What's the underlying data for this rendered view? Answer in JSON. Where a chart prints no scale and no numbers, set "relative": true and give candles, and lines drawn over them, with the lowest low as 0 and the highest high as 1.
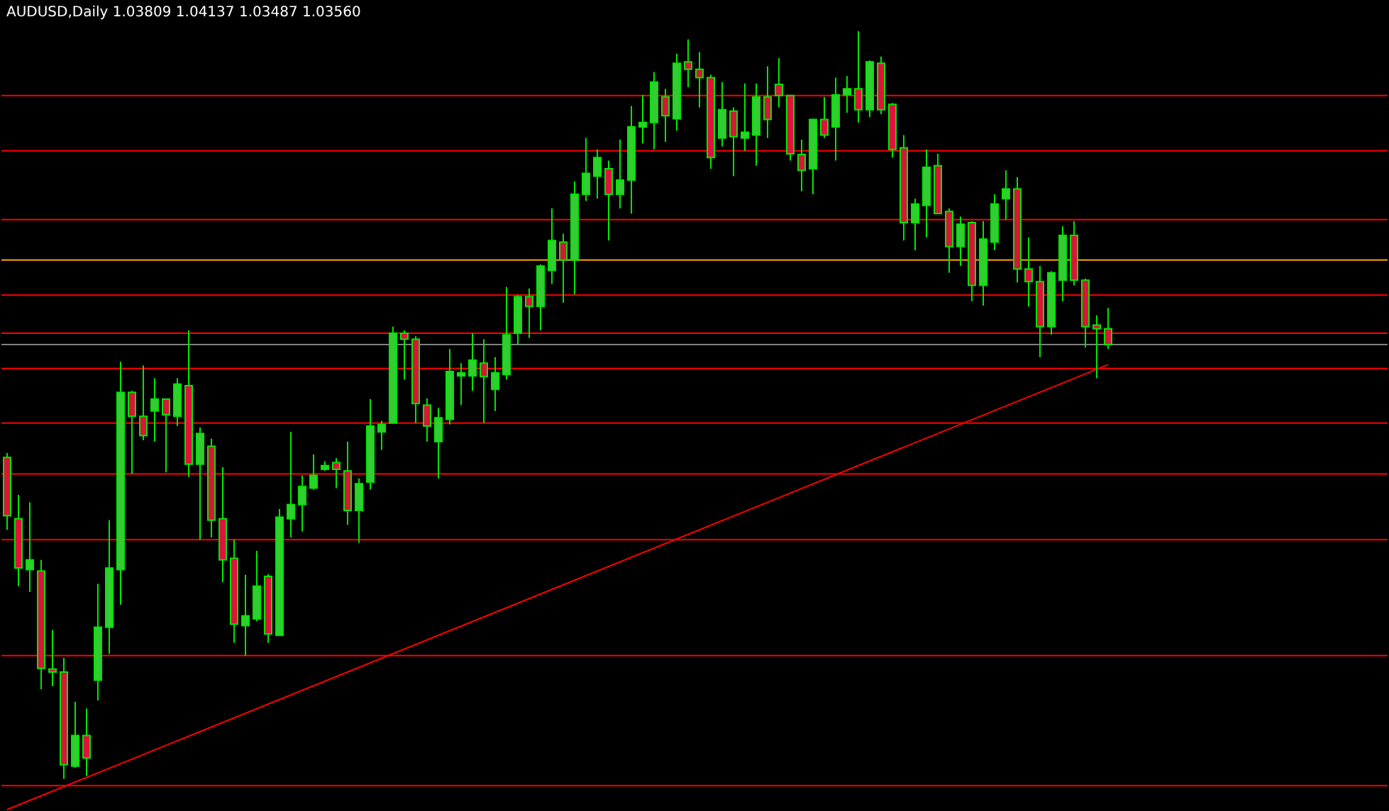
{
  "chart_data": {
    "type": "candlestick",
    "title": "AUDUSD,Daily  1.03809 1.04137 1.03487 1.03560",
    "relative": true,
    "categories": [
      null,
      null,
      null,
      null,
      null,
      null,
      null,
      null,
      null,
      null,
      null,
      null,
      null,
      null,
      null,
      null,
      null,
      null,
      null,
      null,
      null,
      null,
      null,
      null,
      null,
      null,
      null,
      null,
      null,
      null,
      null,
      null,
      null,
      null,
      null,
      null,
      null,
      null,
      null,
      null,
      null,
      null,
      null,
      null,
      null,
      null,
      null,
      null,
      null,
      null,
      null,
      null,
      null,
      null,
      null,
      null,
      null,
      null,
      null,
      null,
      null,
      null,
      null,
      null,
      null,
      null,
      null,
      null,
      null,
      null,
      null,
      null,
      null,
      null,
      null,
      null,
      null,
      null,
      null,
      null,
      null,
      null,
      null,
      null,
      null,
      null,
      null,
      null,
      null,
      null,
      null,
      null,
      null,
      null,
      null,
      null,
      null,
      null
    ],
    "series": [
      {
        "type": "candlestick",
        "color": "#00e600",
        "colors": [
          "#dc143c",
          "#dc143c",
          "#32cd32",
          "#dc143c",
          "#dc143c",
          "#dc143c",
          "#32cd32",
          "#dc143c",
          "#32cd32",
          "#32cd32",
          "#32cd32",
          "#dc143c",
          "#dc143c",
          "#32cd32",
          "#dc143c",
          "#32cd32",
          "#dc143c",
          "#32cd32",
          "#dc143c",
          "#dc143c",
          "#dc143c",
          "#32cd32",
          "#32cd32",
          "#dc143c",
          "#32cd32",
          "#32cd32",
          "#32cd32",
          "#32cd32",
          "#32cd32",
          "#dc143c",
          "#dc143c",
          "#32cd32",
          "#32cd32",
          "#32cd32",
          "#32cd32",
          "#dc143c",
          "#dc143c",
          "#dc143c",
          "#32cd32",
          "#32cd32",
          "#32cd32",
          "#32cd32",
          "#dc143c",
          "#32cd32",
          "#32cd32",
          "#32cd32",
          "#dc143c",
          "#32cd32",
          "#32cd32",
          "#dc143c",
          "#32cd32",
          "#32cd32",
          "#32cd32",
          "#dc143c",
          "#32cd32",
          "#32cd32",
          "#32cd32",
          "#32cd32",
          "#dc143c",
          "#32cd32",
          "#dc143c",
          "#dc143c",
          "#dc143c",
          "#32cd32",
          "#dc143c",
          "#32cd32",
          "#32cd32",
          "#dc143c",
          "#dc143c",
          "#dc143c",
          "#dc143c",
          "#32cd32",
          "#dc143c",
          "#32cd32",
          "#32cd32",
          "#dc143c",
          "#32cd32",
          "#dc143c",
          "#dc143c",
          "#dc143c",
          "#32cd32",
          "#32cd32",
          "#dc143c",
          "#dc143c",
          "#32cd32",
          "#dc143c",
          "#32cd32",
          "#32cd32",
          "#32cd32",
          "#dc143c",
          "#dc143c",
          "#dc143c",
          "#32cd32",
          "#32cd32",
          "#dc143c",
          "#dc143c",
          "#dc143c",
          "#dc143c"
        ],
        "ohlc": [
          [
            0.43,
            0.436,
            0.333,
            0.352
          ],
          [
            0.348,
            0.38,
            0.258,
            0.282
          ],
          [
            0.28,
            0.37,
            0.25,
            0.293
          ],
          [
            0.278,
            0.293,
            0.12,
            0.148
          ],
          [
            0.147,
            0.199,
            0.124,
            0.143
          ],
          [
            0.143,
            0.162,
            0,
            0.019
          ],
          [
            0.017,
            0.103,
            0.015,
            0.058
          ],
          [
            0.058,
            0.094,
            0.004,
            0.028
          ],
          [
            0.132,
            0.261,
            0.105,
            0.203
          ],
          [
            0.203,
            0.346,
            0.167,
            0.282
          ],
          [
            0.28,
            0.558,
            0.233,
            0.517
          ],
          [
            0.517,
            0.519,
            0.408,
            0.485
          ],
          [
            0.485,
            0.553,
            0.453,
            0.459
          ],
          [
            0.492,
            0.536,
            0.451,
            0.508
          ],
          [
            0.508,
            0.509,
            0.41,
            0.487
          ],
          [
            0.485,
            0.536,
            0.472,
            0.528
          ],
          [
            0.526,
            0.6,
            0.404,
            0.421
          ],
          [
            0.421,
            0.47,
            0.32,
            0.462
          ],
          [
            0.445,
            0.455,
            0.323,
            0.346
          ],
          [
            0.348,
            0.417,
            0.263,
            0.293
          ],
          [
            0.295,
            0.32,
            0.182,
            0.207
          ],
          [
            0.205,
            0.273,
            0.165,
            0.218
          ],
          [
            0.214,
            0.305,
            0.211,
            0.258
          ],
          [
            0.271,
            0.274,
            0.182,
            0.194
          ],
          [
            0.192,
            0.361,
            0.192,
            0.35
          ],
          [
            0.348,
            0.464,
            0.323,
            0.367
          ],
          [
            0.367,
            0.406,
            0.331,
            0.391
          ],
          [
            0.389,
            0.434,
            0.387,
            0.406
          ],
          [
            0.414,
            0.425,
            0.412,
            0.419
          ],
          [
            0.423,
            0.429,
            0.389,
            0.414
          ],
          [
            0.412,
            0.451,
            0.34,
            0.359
          ],
          [
            0.359,
            0.402,
            0.316,
            0.395
          ],
          [
            0.397,
            0.508,
            0.387,
            0.472
          ],
          [
            0.464,
            0.479,
            0.44,
            0.474
          ],
          [
            0.476,
            0.605,
            0.476,
            0.596
          ],
          [
            0.596,
            0.6,
            0.534,
            0.588
          ],
          [
            0.588,
            0.592,
            0.476,
            0.502
          ],
          [
            0.5,
            0.509,
            0.451,
            0.472
          ],
          [
            0.451,
            0.496,
            0.402,
            0.483
          ],
          [
            0.481,
            0.575,
            0.474,
            0.545
          ],
          [
            0.539,
            0.556,
            0.5,
            0.543
          ],
          [
            0.539,
            0.596,
            0.519,
            0.56
          ],
          [
            0.556,
            0.588,
            0.476,
            0.538
          ],
          [
            0.521,
            0.564,
            0.492,
            0.543
          ],
          [
            0.541,
            0.658,
            0.534,
            0.594
          ],
          [
            0.596,
            0.647,
            0.581,
            0.645
          ],
          [
            0.645,
            0.656,
            0.59,
            0.632
          ],
          [
            0.632,
            0.688,
            0.6,
            0.686
          ],
          [
            0.68,
            0.763,
            0.662,
            0.72
          ],
          [
            0.718,
            0.729,
            0.637,
            0.694
          ],
          [
            0.694,
            0.799,
            0.648,
            0.782
          ],
          [
            0.782,
            0.857,
            0.773,
            0.81
          ],
          [
            0.806,
            0.842,
            0.776,
            0.831
          ],
          [
            0.816,
            0.827,
            0.72,
            0.782
          ],
          [
            0.782,
            0.855,
            0.763,
            0.801
          ],
          [
            0.801,
            0.9,
            0.756,
            0.872
          ],
          [
            0.872,
            0.915,
            0.85,
            0.878
          ],
          [
            0.878,
            0.945,
            0.842,
            0.932
          ],
          [
            0.912,
            0.923,
            0.852,
            0.887
          ],
          [
            0.883,
            0.97,
            0.867,
            0.957
          ],
          [
            0.959,
            0.989,
            0.925,
            0.949
          ],
          [
            0.949,
            0.972,
            0.898,
            0.938
          ],
          [
            0.938,
            0.942,
            0.816,
            0.831
          ],
          [
            0.857,
            0.932,
            0.846,
            0.895
          ],
          [
            0.893,
            0.898,
            0.806,
            0.859
          ],
          [
            0.857,
            0.93,
            0.84,
            0.865
          ],
          [
            0.861,
            0.93,
            0.82,
            0.912
          ],
          [
            0.912,
            0.953,
            0.857,
            0.882
          ],
          [
            0.929,
            0.964,
            0.898,
            0.914
          ],
          [
            0.914,
            0.915,
            0.827,
            0.836
          ],
          [
            0.835,
            0.855,
            0.786,
            0.814
          ],
          [
            0.816,
            0.883,
            0.782,
            0.882
          ],
          [
            0.882,
            0.912,
            0.857,
            0.861
          ],
          [
            0.872,
            0.938,
            0.827,
            0.915
          ],
          [
            0.915,
            0.94,
            0.891,
            0.923
          ],
          [
            0.923,
            1,
            0.878,
            0.895
          ],
          [
            0.895,
            0.961,
            0.885,
            0.959
          ],
          [
            0.957,
            0.966,
            0.889,
            0.895
          ],
          [
            0.902,
            0.904,
            0.831,
            0.842
          ],
          [
            0.844,
            0.861,
            0.72,
            0.744
          ],
          [
            0.744,
            0.776,
            0.707,
            0.769
          ],
          [
            0.767,
            0.842,
            0.724,
            0.818
          ],
          [
            0.82,
            0.836,
            0.756,
            0.756
          ],
          [
            0.759,
            0.763,
            0.677,
            0.712
          ],
          [
            0.712,
            0.752,
            0.686,
            0.742
          ],
          [
            0.744,
            0.746,
            0.639,
            0.66
          ],
          [
            0.66,
            0.746,
            0.633,
            0.722
          ],
          [
            0.718,
            0.782,
            0.707,
            0.769
          ],
          [
            0.776,
            0.814,
            0.748,
            0.789
          ],
          [
            0.789,
            0.805,
            0.664,
            0.682
          ],
          [
            0.682,
            0.724,
            0.632,
            0.665
          ],
          [
            0.665,
            0.686,
            0.564,
            0.605
          ],
          [
            0.605,
            0.679,
            0.594,
            0.677
          ],
          [
            0.667,
            0.739,
            0.639,
            0.727
          ],
          [
            0.727,
            0.746,
            0.66,
            0.667
          ],
          [
            0.667,
            0.669,
            0.577,
            0.605
          ],
          [
            0.607,
            0.62,
            0.536,
            0.602
          ],
          [
            0.602,
            0.63,
            0.575,
            0.581
          ]
        ]
      },
      {
        "type": "line",
        "color": "#ff0000",
        "values": [
          -0.041,
          null,
          null,
          null,
          null,
          null,
          null,
          null,
          null,
          null,
          null,
          null,
          null,
          null,
          null,
          null,
          null,
          null,
          null,
          null,
          null,
          null,
          null,
          null,
          null,
          null,
          null,
          null,
          null,
          null,
          null,
          null,
          null,
          null,
          null,
          null,
          null,
          null,
          null,
          null,
          null,
          null,
          null,
          null,
          null,
          null,
          null,
          null,
          null,
          null,
          null,
          null,
          null,
          null,
          null,
          null,
          null,
          null,
          null,
          null,
          null,
          null,
          null,
          null,
          null,
          null,
          null,
          null,
          null,
          null,
          null,
          null,
          null,
          null,
          null,
          null,
          null,
          null,
          null,
          null,
          null,
          null,
          null,
          null,
          null,
          null,
          null,
          null,
          null,
          null,
          null,
          null,
          null,
          null,
          null,
          null,
          null,
          0.554
        ]
      }
    ],
    "ref_lines": [
      {
        "axis": "y",
        "value": 0.914,
        "color": "#ff0000"
      },
      {
        "axis": "y",
        "value": 0.84,
        "color": "#ff0000"
      },
      {
        "axis": "y",
        "value": 0.748,
        "color": "#ff0000"
      },
      {
        "axis": "y",
        "value": 0.694,
        "color": "#ffa500"
      },
      {
        "axis": "y",
        "value": 0.647,
        "color": "#ff0000"
      },
      {
        "axis": "y",
        "value": 0.596,
        "color": "#ff0000"
      },
      {
        "axis": "y",
        "value": 0.581,
        "color": "#808080"
      },
      {
        "axis": "y",
        "value": 0.549,
        "color": "#ff0000"
      },
      {
        "axis": "y",
        "value": 0.476,
        "color": "#ff0000"
      },
      {
        "axis": "y",
        "value": 0.408,
        "color": "#ff0000"
      },
      {
        "axis": "y",
        "value": 0.32,
        "color": "#ff0000"
      },
      {
        "axis": "y",
        "value": 0.165,
        "color": "#ff0000"
      },
      {
        "axis": "y",
        "value": -0.009,
        "color": "#ff0000"
      }
    ]
  }
}
